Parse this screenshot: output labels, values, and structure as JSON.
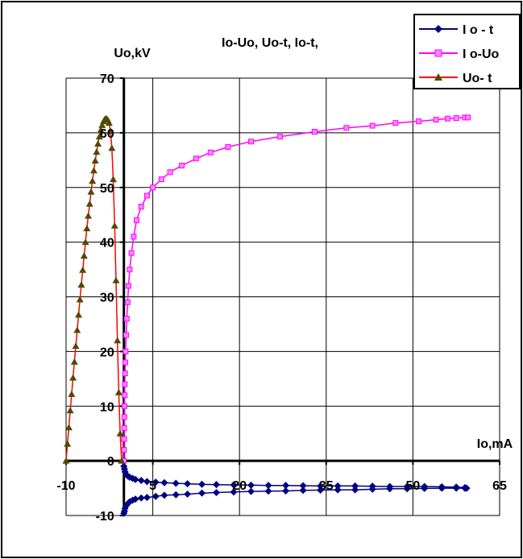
{
  "chart_data": {
    "type": "line",
    "title": "Io-Uo, Uo-t, Io-t,",
    "xlabel": "Io,mA",
    "ylabel": "Uo,kV",
    "xlim": [
      -10,
      65
    ],
    "ylim": [
      -10,
      70
    ],
    "x_ticks": [
      -10,
      5,
      20,
      35,
      50,
      65
    ],
    "y_ticks": [
      -10,
      0,
      10,
      20,
      30,
      40,
      50,
      60,
      70
    ],
    "x_tick_labels": [
      "-10",
      "5",
      "20",
      "35",
      "50",
      "65"
    ],
    "y_tick_labels": [
      "-10",
      "0",
      "10",
      "20",
      "30",
      "40",
      "50",
      "60",
      "70"
    ],
    "grid": true,
    "legend_position": "top-right",
    "series": [
      {
        "name": "I o - t",
        "color": "#000080",
        "marker": "diamond",
        "x": [
          0.0,
          0.1,
          0.2,
          0.4,
          0.7,
          1.0,
          1.5,
          2.0,
          3.0,
          4.0,
          5.5,
          7.0,
          9.0,
          11.0,
          13.5,
          16.0,
          19.0,
          22.0,
          25.0,
          28.0,
          31.0,
          34.0,
          37.0,
          40.0,
          43.0,
          46.0,
          49.0,
          52.0,
          55.0,
          57.5,
          59.0,
          59.3,
          59.0,
          57.5,
          55.0,
          52.0,
          49.0,
          46.0,
          43.0,
          40.0,
          37.0,
          34.0,
          31.0,
          28.0,
          25.0,
          22.0,
          19.0,
          16.0,
          13.5,
          11.0,
          9.0,
          7.0,
          5.5,
          4.0,
          3.0,
          2.0,
          1.5,
          1.0,
          0.7,
          0.4,
          0.2,
          0.1,
          0.0
        ],
        "y": [
          -1.0,
          -1.5,
          -2.0,
          -2.5,
          -2.8,
          -3.0,
          -3.2,
          -3.4,
          -3.6,
          -3.8,
          -3.9,
          -4.0,
          -4.1,
          -4.2,
          -4.3,
          -4.35,
          -4.4,
          -4.45,
          -4.5,
          -4.5,
          -4.55,
          -4.6,
          -4.6,
          -4.6,
          -4.65,
          -4.7,
          -4.7,
          -4.7,
          -4.75,
          -4.8,
          -4.9,
          -5.0,
          -5.0,
          -5.0,
          -5.0,
          -5.05,
          -5.1,
          -5.1,
          -5.2,
          -5.3,
          -5.3,
          -5.35,
          -5.4,
          -5.5,
          -5.55,
          -5.6,
          -5.7,
          -5.8,
          -5.9,
          -6.1,
          -6.2,
          -6.3,
          -6.5,
          -6.7,
          -6.8,
          -7.0,
          -7.2,
          -7.5,
          -7.8,
          -8.2,
          -8.7,
          -9.2,
          -9.6
        ]
      },
      {
        "name": "I o-Uo",
        "color": "#FF00FF",
        "marker": "square",
        "x": [
          0.0,
          0.02,
          0.04,
          0.06,
          0.08,
          0.1,
          0.13,
          0.16,
          0.2,
          0.25,
          0.3,
          0.4,
          0.5,
          0.65,
          0.8,
          1.0,
          1.3,
          1.7,
          2.2,
          3.0,
          4.0,
          5.0,
          6.5,
          8.0,
          10.0,
          12.5,
          15.0,
          18.0,
          22.0,
          27.0,
          33.0,
          38.5,
          43.0,
          47.0,
          51.0,
          54.0,
          56.0,
          57.5,
          59.0,
          59.5
        ],
        "y": [
          0,
          2,
          4,
          6,
          8,
          10,
          12,
          14,
          16,
          18,
          20,
          23,
          26,
          29,
          32,
          35,
          38,
          41,
          44,
          46.5,
          48.5,
          50,
          51.5,
          52.8,
          54,
          55.3,
          56.4,
          57.4,
          58.4,
          59.3,
          60.2,
          60.9,
          61.3,
          61.8,
          62.1,
          62.4,
          62.6,
          62.7,
          62.8,
          62.8
        ]
      },
      {
        "name": "Uo- t",
        "color": "#FF0000",
        "marker": "triangle",
        "marker_color": "#4E4B00",
        "x": [
          -10.0,
          -9.76,
          -9.52,
          -9.28,
          -9.04,
          -8.8,
          -8.56,
          -8.32,
          -8.08,
          -7.84,
          -7.6,
          -7.36,
          -7.12,
          -6.88,
          -6.64,
          -6.4,
          -6.16,
          -5.92,
          -5.68,
          -5.44,
          -5.2,
          -4.96,
          -4.72,
          -4.48,
          -4.24,
          -4.0,
          -3.76,
          -3.52,
          -3.28,
          -3.04,
          -2.8,
          -2.56,
          -2.32,
          -2.08,
          -1.84,
          -1.6,
          -1.36,
          -1.12,
          -0.88,
          -0.64,
          -0.4
        ],
        "y": [
          0.0,
          3.1,
          6.1,
          9.2,
          12.2,
          15.2,
          18.1,
          21.0,
          23.9,
          26.7,
          29.5,
          32.2,
          34.9,
          37.5,
          40.0,
          42.5,
          44.8,
          47.0,
          49.2,
          51.2,
          53.1,
          54.9,
          56.5,
          58.0,
          59.3,
          60.5,
          61.4,
          62.1,
          62.5,
          62.6,
          62.4,
          61.8,
          60.3,
          57.2,
          51.5,
          43.0,
          33.0,
          22.0,
          12.5,
          5.0,
          0.0
        ]
      }
    ]
  }
}
